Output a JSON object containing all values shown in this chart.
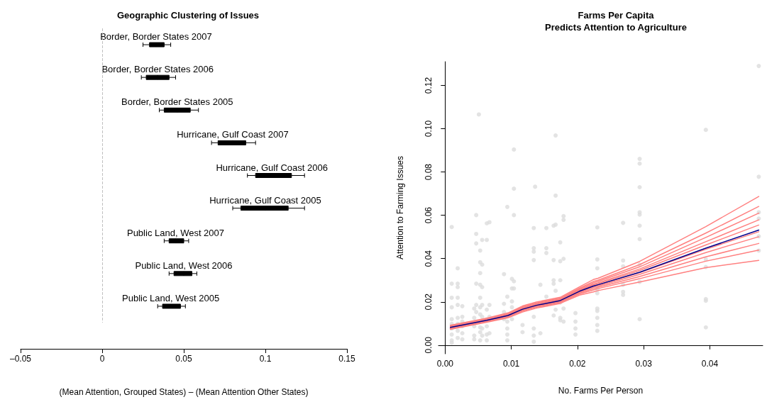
{
  "chart_data": [
    {
      "type": "box",
      "title": "Geographic Clustering of Issues",
      "xlabel": "(Mean Attention, Grouped States) – (Mean Attention Other States)",
      "orientation": "horizontal",
      "color": "#000000",
      "tick_labels": "x",
      "categories": [
        "Border, Border States 2007",
        "Border, Border States 2006",
        "Border, Border States 2005",
        "Hurricane, Gulf Coast 2007",
        "Hurricane, Gulf Coast 2006",
        "Hurricane, Gulf Coast 2005",
        "Public Land, West 2007",
        "Public Land, West 2006",
        "Public Land, West 2005"
      ],
      "boxes": [
        {
          "low": 0.025,
          "q1": 0.029,
          "median": 0.033,
          "q3": 0.038,
          "high": 0.042
        },
        {
          "low": 0.024,
          "q1": 0.027,
          "median": 0.034,
          "q3": 0.041,
          "high": 0.045
        },
        {
          "low": 0.035,
          "q1": 0.038,
          "median": 0.046,
          "q3": 0.054,
          "high": 0.059
        },
        {
          "low": 0.067,
          "q1": 0.071,
          "median": 0.08,
          "q3": 0.088,
          "high": 0.094
        },
        {
          "low": 0.089,
          "q1": 0.094,
          "median": 0.104,
          "q3": 0.116,
          "high": 0.124
        },
        {
          "low": 0.08,
          "q1": 0.085,
          "median": 0.1,
          "q3": 0.114,
          "high": 0.124
        },
        {
          "low": 0.038,
          "q1": 0.041,
          "median": 0.045,
          "q3": 0.05,
          "high": 0.053
        },
        {
          "low": 0.041,
          "q1": 0.044,
          "median": 0.05,
          "q3": 0.055,
          "high": 0.058
        },
        {
          "low": 0.034,
          "q1": 0.037,
          "median": 0.042,
          "q3": 0.048,
          "high": 0.051
        }
      ],
      "xlim": [
        -0.05,
        0.15
      ],
      "xticks": [
        {
          "value": -0.05,
          "label": "–0.05"
        },
        0,
        0.05,
        0.1,
        0.15
      ],
      "ref_lines": [
        {
          "axis": "x",
          "value": 0,
          "color": "#c0c0c0",
          "line_style": "dashed"
        }
      ]
    },
    {
      "type": "scatter",
      "title": "Farms Per Capita\nPredicts Attention to Agriculture",
      "xlabel": "No. Farms Per Person",
      "ylabel": "Attention to Farming Issues",
      "marker": "circle",
      "xlim": [
        -0.001,
        0.048
      ],
      "xticks": [
        {
          "value": 0,
          "label": "0.00"
        },
        0.01,
        0.02,
        0.03,
        0.04
      ],
      "ylim": [
        -0.004,
        0.131
      ],
      "yticks": [
        {
          "value": 0,
          "label": "0.00"
        },
        0.02,
        0.04,
        0.06,
        0.08,
        {
          "value": 0.1,
          "label": "0.10"
        },
        0.12
      ],
      "series": [
        {
          "type": "scatter",
          "color": "#dcdcdc",
          "x": [
            0.001,
            0.001,
            0.001,
            0.001,
            0.001,
            0.001,
            0.001,
            0.001,
            0.001,
            0.001,
            0.0019,
            0.0019,
            0.0019,
            0.0019,
            0.0019,
            0.0019,
            0.0019,
            0.0019,
            0.0019,
            0.0026,
            0.0026,
            0.0026,
            0.0026,
            0.0026,
            0.0026,
            0.0044,
            0.0044,
            0.0044,
            0.0044,
            0.0044,
            0.0047,
            0.0047,
            0.0047,
            0.0047,
            0.0047,
            0.0047,
            0.0051,
            0.0053,
            0.0053,
            0.0053,
            0.0053,
            0.0053,
            0.0053,
            0.0053,
            0.0053,
            0.0053,
            0.0053,
            0.0056,
            0.0056,
            0.0056,
            0.0056,
            0.0056,
            0.0056,
            0.0056,
            0.0063,
            0.0063,
            0.0063,
            0.0063,
            0.0063,
            0.0063,
            0.0063,
            0.0067,
            0.0067,
            0.0067,
            0.0067,
            0.0089,
            0.0089,
            0.0089,
            0.0089,
            0.0094,
            0.0094,
            0.0094,
            0.0094,
            0.0094,
            0.0094,
            0.0101,
            0.0101,
            0.0101,
            0.0101,
            0.0101,
            0.0104,
            0.0104,
            0.0104,
            0.0104,
            0.0104,
            0.0117,
            0.0117,
            0.0134,
            0.0134,
            0.0134,
            0.0134,
            0.0134,
            0.0134,
            0.0134,
            0.0134,
            0.0136,
            0.0144,
            0.0144,
            0.0153,
            0.0153,
            0.0153,
            0.0153,
            0.0164,
            0.0164,
            0.0164,
            0.0164,
            0.0164,
            0.0167,
            0.0167,
            0.0167,
            0.0167,
            0.0167,
            0.0174,
            0.0174,
            0.0174,
            0.0174,
            0.0174,
            0.0174,
            0.0179,
            0.0179,
            0.0179,
            0.0179,
            0.0179,
            0.0197,
            0.0197,
            0.0197,
            0.0197,
            0.023,
            0.023,
            0.023,
            0.023,
            0.023,
            0.023,
            0.023,
            0.023,
            0.023,
            0.023,
            0.0269,
            0.0269,
            0.0269,
            0.0269,
            0.0269,
            0.0269,
            0.0294,
            0.0294,
            0.0294,
            0.0294,
            0.0294,
            0.0294,
            0.0294,
            0.0294,
            0.0294,
            0.0294,
            0.0394,
            0.0394,
            0.0394,
            0.0394,
            0.0394,
            0.0394,
            0.0474,
            0.0474,
            0.0474,
            0.0474,
            0.0474,
            0.0474
          ],
          "values": [
            0.0546,
            0.0284,
            0.0219,
            0.0175,
            0.012,
            0.0098,
            0.0077,
            0.0049,
            0.0022,
            0.0011,
            0.0355,
            0.0284,
            0.0268,
            0.0219,
            0.0186,
            0.0126,
            0.0098,
            0.0066,
            0.0033,
            0.018,
            0.0131,
            0.0109,
            0.0087,
            0.0055,
            0.0027,
            0.0169,
            0.0126,
            0.0087,
            0.0044,
            0.0027,
            0.0601,
            0.0514,
            0.047,
            0.0284,
            0.0186,
            0.0153,
            0.1066,
            0.0437,
            0.0383,
            0.0333,
            0.0279,
            0.0219,
            0.0175,
            0.0142,
            0.0082,
            0.006,
            0.0022,
            0.0486,
            0.0372,
            0.0268,
            0.0186,
            0.0131,
            0.0077,
            0.0044,
            0.0563,
            0.0486,
            0.0164,
            0.012,
            0.0087,
            0.0049,
            0.0022,
            0.0568,
            0.0186,
            0.0131,
            0.0055,
            0.0328,
            0.0191,
            0.0153,
            0.012,
            0.0639,
            0.0224,
            0.0109,
            0.0077,
            0.0049,
            0.0022,
            0.0306,
            0.0262,
            0.0202,
            0.0175,
            0.012,
            0.0904,
            0.0723,
            0.0601,
            0.0295,
            0.0262,
            0.0093,
            0.006,
            0.0541,
            0.0448,
            0.0432,
            0.0393,
            0.0131,
            0.0077,
            0.0044,
            0.0016,
            0.0732,
            0.0279,
            0.0055,
            0.0541,
            0.0448,
            0.0426,
            0.0224,
            0.0552,
            0.0393,
            0.03,
            0.0284,
            0.0137,
            0.0969,
            0.0691,
            0.0557,
            0.0251,
            0.0164,
            0.0475,
            0.0388,
            0.03,
            0.0197,
            0.0126,
            0.0115,
            0.0596,
            0.0579,
            0.0399,
            0.0169,
            0.0109,
            0.0148,
            0.0109,
            0.0077,
            0.0049,
            0.0544,
            0.0396,
            0.0355,
            0.0257,
            0.024,
            0.0169,
            0.0158,
            0.0126,
            0.0093,
            0.0066,
            0.0565,
            0.0391,
            0.0364,
            0.0279,
            0.0246,
            0.0232,
            0.0861,
            0.0839,
            0.073,
            0.0614,
            0.0603,
            0.0552,
            0.049,
            0.0372,
            0.0292,
            0.012,
            0.0995,
            0.0396,
            0.0361,
            0.0213,
            0.0205,
            0.0082,
            0.129,
            0.0778,
            0.0614,
            0.0585,
            0.0503,
            0.0437
          ]
        },
        {
          "type": "line",
          "color": "#ff8080",
          "marker": "none",
          "x": [
            0.0008,
            0.0063,
            0.0095,
            0.0117,
            0.0138,
            0.0174,
            0.0203,
            0.0224,
            0.0231,
            0.0294,
            0.0394,
            0.0474
          ],
          "values": [
            0.0073,
            0.0106,
            0.0126,
            0.0153,
            0.0171,
            0.0193,
            0.0231,
            0.0246,
            0.0252,
            0.0292,
            0.0358,
            0.0392
          ]
        },
        {
          "type": "line",
          "color": "#ff8080",
          "marker": "none",
          "x": [
            0.0008,
            0.0063,
            0.0095,
            0.0117,
            0.0138,
            0.0174,
            0.0203,
            0.0224,
            0.0231,
            0.0294,
            0.0394,
            0.0474
          ],
          "values": [
            0.0076,
            0.0109,
            0.013,
            0.0157,
            0.0175,
            0.0197,
            0.0237,
            0.0255,
            0.0261,
            0.0307,
            0.0388,
            0.0439
          ]
        },
        {
          "type": "line",
          "color": "#ff8080",
          "marker": "none",
          "x": [
            0.0008,
            0.0063,
            0.0095,
            0.0117,
            0.0138,
            0.0174,
            0.0203,
            0.0224,
            0.0231,
            0.0294,
            0.0394,
            0.0474
          ],
          "values": [
            0.0078,
            0.0111,
            0.0132,
            0.016,
            0.0178,
            0.02,
            0.0241,
            0.0261,
            0.0267,
            0.0317,
            0.0408,
            0.047
          ]
        },
        {
          "type": "line",
          "color": "#ff8080",
          "marker": "none",
          "x": [
            0.0008,
            0.0063,
            0.0095,
            0.0117,
            0.0138,
            0.0174,
            0.0203,
            0.0224,
            0.0231,
            0.0294,
            0.0394,
            0.0474
          ],
          "values": [
            0.008,
            0.0113,
            0.0135,
            0.0163,
            0.0181,
            0.0203,
            0.0245,
            0.0267,
            0.0273,
            0.0327,
            0.0428,
            0.0501
          ]
        },
        {
          "type": "line",
          "color": "#ff8080",
          "marker": "none",
          "x": [
            0.0008,
            0.0063,
            0.0095,
            0.0117,
            0.0138,
            0.0174,
            0.0203,
            0.0224,
            0.0231,
            0.0294,
            0.0394,
            0.0474
          ],
          "values": [
            0.0082,
            0.0115,
            0.0136,
            0.0165,
            0.0183,
            0.0205,
            0.0248,
            0.0272,
            0.0278,
            0.0335,
            0.0443,
            0.0524
          ]
        },
        {
          "type": "line",
          "color": "#ff8080",
          "marker": "none",
          "x": [
            0.0008,
            0.0063,
            0.0095,
            0.0117,
            0.0138,
            0.0174,
            0.0203,
            0.0224,
            0.0231,
            0.0294,
            0.0394,
            0.0474
          ],
          "values": [
            0.0084,
            0.0117,
            0.0139,
            0.0168,
            0.0186,
            0.0208,
            0.0252,
            0.0278,
            0.0284,
            0.0345,
            0.0463,
            0.0555
          ]
        },
        {
          "type": "line",
          "color": "#ff8080",
          "marker": "none",
          "x": [
            0.0008,
            0.0063,
            0.0095,
            0.0117,
            0.0138,
            0.0174,
            0.0203,
            0.0224,
            0.0231,
            0.0294,
            0.0394,
            0.0474
          ],
          "values": [
            0.0085,
            0.0118,
            0.0141,
            0.0171,
            0.0189,
            0.0211,
            0.0255,
            0.0282,
            0.0288,
            0.0352,
            0.0478,
            0.0579
          ]
        },
        {
          "type": "line",
          "color": "#ff8080",
          "marker": "none",
          "x": [
            0.0008,
            0.0063,
            0.0095,
            0.0117,
            0.0138,
            0.0174,
            0.0203,
            0.0224,
            0.0231,
            0.0294,
            0.0394,
            0.0474
          ],
          "values": [
            0.0087,
            0.012,
            0.0143,
            0.0174,
            0.0192,
            0.0214,
            0.0259,
            0.0288,
            0.0294,
            0.0362,
            0.0498,
            0.061
          ]
        },
        {
          "type": "line",
          "color": "#ff8080",
          "marker": "none",
          "x": [
            0.0008,
            0.0063,
            0.0095,
            0.0117,
            0.0138,
            0.0174,
            0.0203,
            0.0224,
            0.0231,
            0.0294,
            0.0394,
            0.0474
          ],
          "values": [
            0.0089,
            0.0122,
            0.0145,
            0.0177,
            0.0195,
            0.0217,
            0.0263,
            0.0294,
            0.03,
            0.0372,
            0.0518,
            0.0641
          ]
        },
        {
          "type": "line",
          "color": "#ff8080",
          "marker": "none",
          "x": [
            0.0008,
            0.0063,
            0.0095,
            0.0117,
            0.0138,
            0.0174,
            0.0203,
            0.0224,
            0.0231,
            0.0294,
            0.0394,
            0.0474
          ],
          "values": [
            0.0092,
            0.0125,
            0.0149,
            0.0181,
            0.0199,
            0.0221,
            0.0269,
            0.0303,
            0.0309,
            0.0387,
            0.0548,
            0.0687
          ]
        },
        {
          "type": "line",
          "color": "#00008b",
          "marker": "none",
          "x": [
            0.0008,
            0.0063,
            0.0095,
            0.0117,
            0.0138,
            0.0174,
            0.0203,
            0.0224,
            0.0231,
            0.0294,
            0.0394,
            0.0474
          ],
          "values": [
            0.0082,
            0.0115,
            0.0137,
            0.0166,
            0.0184,
            0.0206,
            0.0249,
            0.0273,
            0.0279,
            0.0337,
            0.0448,
            0.0532
          ]
        }
      ]
    }
  ]
}
